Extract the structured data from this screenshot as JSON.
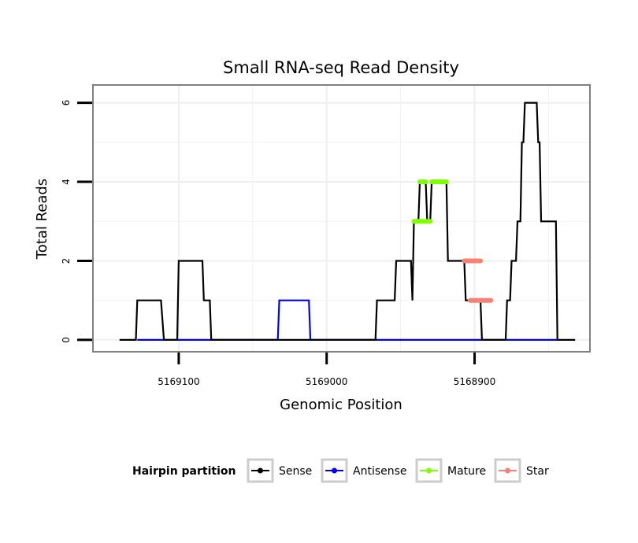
{
  "chart_data": {
    "type": "line",
    "title": "Small RNA-seq Read Density",
    "xlabel": "Genomic Position",
    "ylabel": "Total Reads",
    "x_reversed": true,
    "xlim": [
      5169158,
      5168822
    ],
    "ylim": [
      -0.3,
      6.45
    ],
    "x_ticks": [
      5169100,
      5169000,
      5168900
    ],
    "x_tick_labels": [
      "5169100",
      "5169000",
      "5168900"
    ],
    "y_ticks": [
      0,
      2,
      4,
      6
    ],
    "y_tick_labels": [
      "0",
      "2",
      "4",
      "6"
    ],
    "legend": {
      "title": "Hairpin partition",
      "position": "bottom",
      "entries": [
        "Sense",
        "Antisense",
        "Mature",
        "Star"
      ]
    },
    "series": [
      {
        "name": "Sense",
        "color": "#000000",
        "points": [
          [
            5169140,
            0
          ],
          [
            5169129,
            0
          ],
          [
            5169128,
            1
          ],
          [
            5169112,
            1
          ],
          [
            5169110,
            0
          ],
          [
            5169101,
            0
          ],
          [
            5169100,
            2
          ],
          [
            5169084,
            2
          ],
          [
            5169083,
            1
          ],
          [
            5169079,
            1
          ],
          [
            5169078,
            0
          ],
          [
            5169033,
            0
          ],
          [
            5168967,
            0
          ],
          [
            5168966,
            1
          ],
          [
            5168954,
            1
          ],
          [
            5168953,
            2
          ],
          [
            5168943,
            2
          ],
          [
            5168942,
            1
          ],
          [
            5168941,
            3
          ],
          [
            5168938,
            3
          ],
          [
            5168937,
            4
          ],
          [
            5168933,
            4
          ],
          [
            5168932,
            3
          ],
          [
            5168930,
            3
          ],
          [
            5168929,
            4
          ],
          [
            5168919,
            4
          ],
          [
            5168918,
            2
          ],
          [
            5168907,
            2
          ],
          [
            5168906,
            1
          ],
          [
            5168896,
            1
          ],
          [
            5168895,
            0
          ],
          [
            5168879,
            0
          ],
          [
            5168878,
            1
          ],
          [
            5168876,
            1
          ],
          [
            5168875,
            2
          ],
          [
            5168872,
            2
          ],
          [
            5168871,
            3
          ],
          [
            5168869,
            3
          ],
          [
            5168868,
            5
          ],
          [
            5168867,
            5
          ],
          [
            5168866,
            6
          ],
          [
            5168858,
            6
          ],
          [
            5168857,
            5
          ],
          [
            5168856,
            5
          ],
          [
            5168855,
            3
          ],
          [
            5168845,
            3
          ],
          [
            5168844,
            0
          ],
          [
            5168832,
            0
          ]
        ]
      },
      {
        "name": "Antisense",
        "color": "#0000ff",
        "points": [
          [
            5169128,
            0
          ],
          [
            5169078,
            0
          ],
          [
            5169033,
            0
          ],
          [
            5169032,
            1
          ],
          [
            5169012,
            1
          ],
          [
            5169011,
            0
          ],
          [
            5168844,
            0
          ]
        ]
      },
      {
        "name": "Mature",
        "color": "#7fff00",
        "points": [
          [
            5168941,
            3
          ],
          [
            5168930,
            3
          ]
        ]
      },
      {
        "name": "Star",
        "color": "#fa8072",
        "points": [
          [
            5168907,
            2
          ],
          [
            5168896,
            1
          ]
        ]
      }
    ],
    "highlight_segments": [
      {
        "series": "Mature",
        "from": 5168941,
        "to": 5168930,
        "y": 3
      },
      {
        "series": "Mature",
        "from": 5168937,
        "to": 5168933,
        "y": 4
      },
      {
        "series": "Mature",
        "from": 5168929,
        "to": 5168919,
        "y": 4
      },
      {
        "series": "Star",
        "from": 5168907,
        "to": 5168896,
        "y": 2
      },
      {
        "series": "Star",
        "from": 5168903,
        "to": 5168889,
        "y": 1
      }
    ],
    "grid": true
  }
}
